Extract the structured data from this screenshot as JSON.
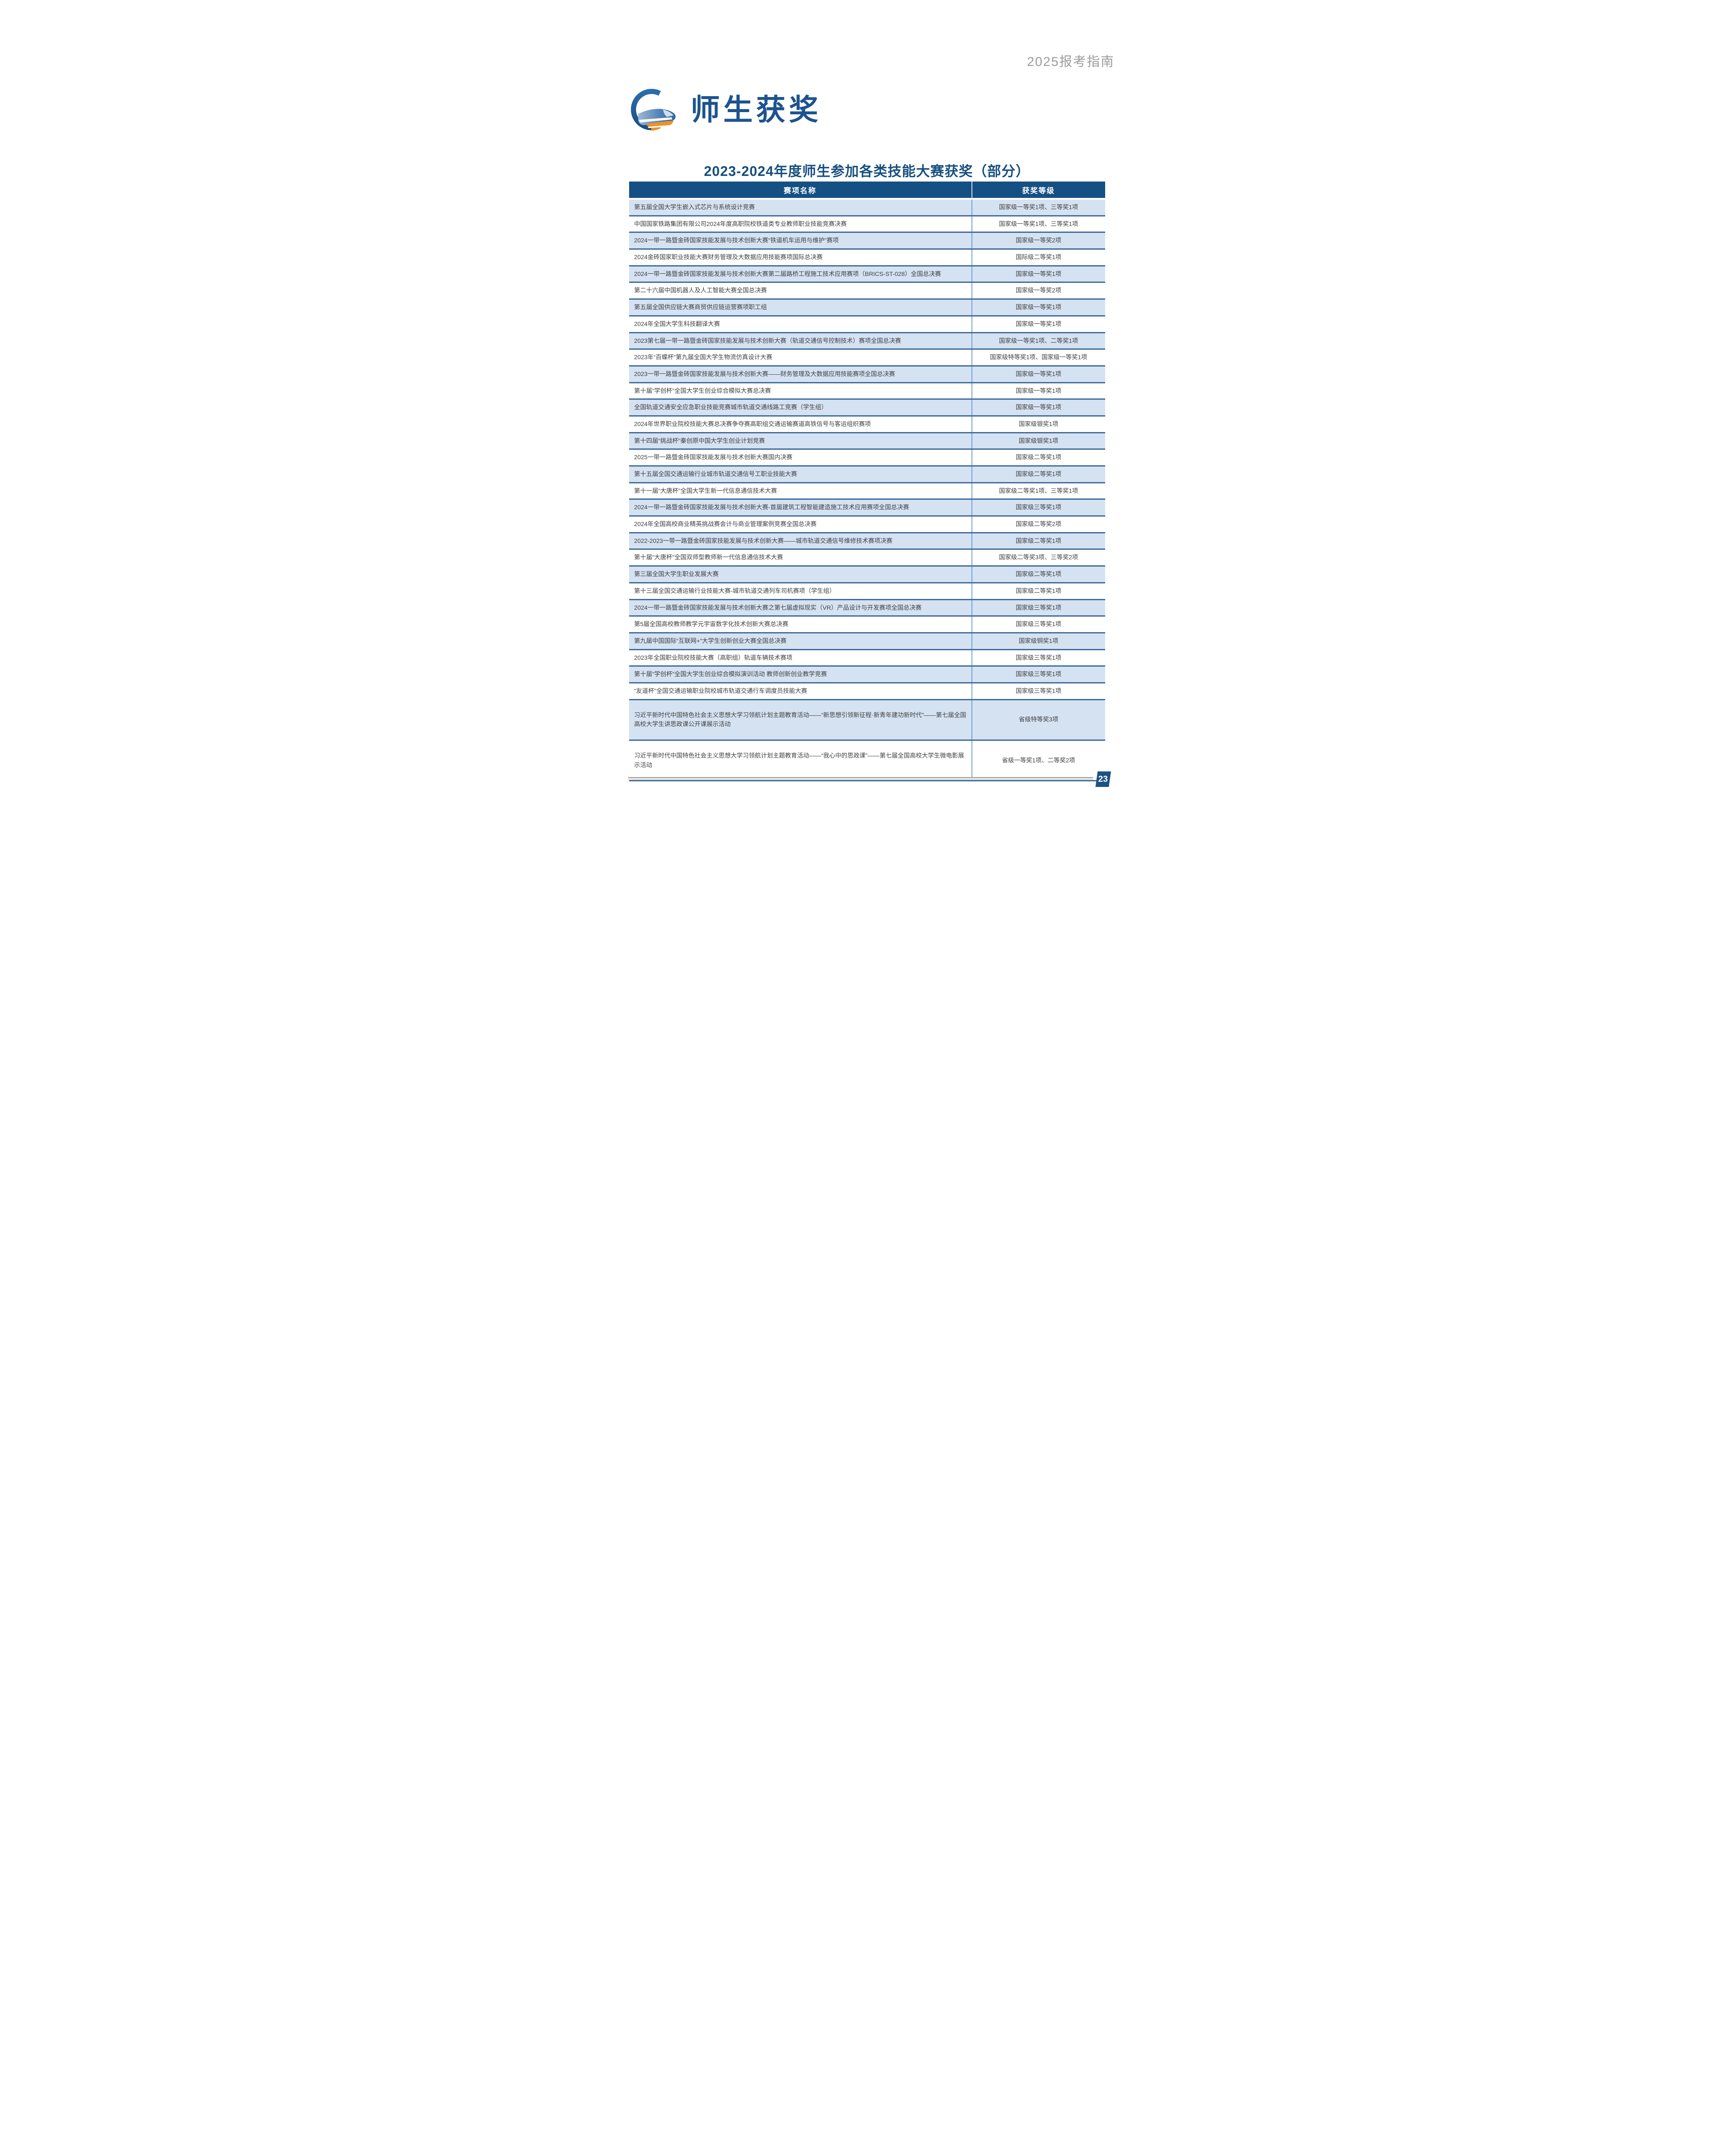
{
  "page": {
    "header_right": "2025报考指南",
    "page_number": "23"
  },
  "banner": {
    "title": "师生获奖",
    "logo": "high-speed-train-ring-logo"
  },
  "section": {
    "table_title": "2023-2024年度师生参加各类技能大赛获奖（部分）"
  },
  "table": {
    "columns": [
      "赛项名称",
      "获奖等级"
    ],
    "rows": [
      {
        "name": "第五届全国大学生嵌入式芯片与系统设计竞赛",
        "award": "国家级一等奖1项、三等奖1项"
      },
      {
        "name": "中国国家铁路集团有限公司2024年度高职院校铁道类专业教师职业技能竞赛决赛",
        "award": "国家级一等奖1项、三等奖1项"
      },
      {
        "name": "2024一带一路暨金砖国家技能发展与技术创新大赛“铁道机车运用与维护”赛项",
        "award": "国家级一等奖2项"
      },
      {
        "name": "2024金砖国家职业技能大赛财务管理及大数据应用技能赛项国际总决赛",
        "award": "国际级二等奖1项"
      },
      {
        "name": "2024一带一路暨金砖国家技能发展与技术创新大赛第二届路桥工程施工技术应用赛项（BRICS-ST-028）全国总决赛",
        "award": "国家级一等奖1项"
      },
      {
        "name": "第二十六届中国机器人及人工智能大赛全国总决赛",
        "award": "国家级一等奖2项"
      },
      {
        "name": "第五届全国供应链大赛商贸供应链运营赛项职工组",
        "award": "国家级一等奖1项"
      },
      {
        "name": "2024年全国大学生科技翻译大赛",
        "award": "国家级一等奖1项"
      },
      {
        "name": "2023第七届一带一路暨金砖国家技能发展与技术创新大赛（轨道交通信号控制技术）赛项全国总决赛",
        "award": "国家级一等奖1项、二等奖1项"
      },
      {
        "name": "2023年“百蝶杯”第九届全国大学生物流仿真设计大赛",
        "award": "国家级特等奖1项、国家级一等奖1项"
      },
      {
        "name": "2023一带一路暨金砖国家技能发展与技术创新大赛——财务管理及大数据应用技能赛项全国总决赛",
        "award": "国家级一等奖1项"
      },
      {
        "name": "第十届“学创杯”全国大学生创业综合模拟大赛总决赛",
        "award": "国家级一等奖1项"
      },
      {
        "name": "全国轨道交通安全应急职业技能竞赛城市轨道交通线路工竞赛（学生组）",
        "award": "国家级一等奖1项"
      },
      {
        "name": "2024年世界职业院校技能大赛总决赛争夺赛高职组交通运输赛道高铁信号与客运组织赛项",
        "award": "国家级银奖1项"
      },
      {
        "name": "第十四届“挑战杯”秦创原中国大学生创业计划竞赛",
        "award": "国家级银奖1项"
      },
      {
        "name": "2025一带一路暨金砖国家技能发展与技术创新大赛国内决赛",
        "award": "国家级二等奖1项"
      },
      {
        "name": "第十五届全国交通运输行业城市轨道交通信号工职业技能大赛",
        "award": "国家级二等奖1项"
      },
      {
        "name": "第十一届“大唐杯”全国大学生新一代信息通信技术大赛",
        "award": "国家级二等奖1项、三等奖1项"
      },
      {
        "name": "2024一带一路暨金砖国家技能发展与技术创新大赛-首届建筑工程智能建造施工技术应用赛项全国总决赛",
        "award": "国家级三等奖1项"
      },
      {
        "name": "2024年全国高校商业精英挑战赛会计与商业管理案例竞赛全国总决赛",
        "award": "国家级二等奖2项"
      },
      {
        "name": "2022-2023一带一路暨金砖国家技能发展与技术创新大赛——城市轨道交通信号维修技术赛项决赛",
        "award": "国家级二等奖1项"
      },
      {
        "name": "第十届“大唐杯”全国双师型教师新一代信息通信技术大赛",
        "award": "国家级二等奖3项、三等奖2项"
      },
      {
        "name": "第三届全国大学生职业发展大赛",
        "award": "国家级二等奖1项"
      },
      {
        "name": "第十三届全国交通运输行业技能大赛-城市轨道交通列车司机赛项（学生组）",
        "award": "国家级二等奖1项"
      },
      {
        "name": "2024一带一路暨金砖国家技能发展与技术创新大赛之第七届虚拟现实（VR）产品设计与开发赛项全国总决赛",
        "award": "国家级三等奖1项"
      },
      {
        "name": "第5届全国高校教师教学元宇宙数字化技术创新大赛总决赛",
        "award": "国家级三等奖1项"
      },
      {
        "name": "第九届中国国际“互联网+”大学生创新创业大赛全国总决赛",
        "award": "国家级铜奖1项"
      },
      {
        "name": "2023年全国职业院校技能大赛（高职组）轨道车辆技术赛项",
        "award": "国家级三等奖1项"
      },
      {
        "name": "第十届“学创杯”全国大学生创业综合模拟演训活动 教师创新创业教学竞赛",
        "award": "国家级三等奖1项"
      },
      {
        "name": "“友道杯”全国交通运输职业院校城市轨道交通行车调度员技能大赛",
        "award": "国家级三等奖1项"
      },
      {
        "name": "习近平新时代中国特色社会主义思想大学习领航计划主题教育活动——“新思想引领新征程·新青年建功新时代”——第七届全国高校大学生讲思政课公开课展示活动",
        "award": "省级特等奖3项"
      },
      {
        "name": "习近平新时代中国特色社会主义思想大学习领航计划主题教育活动——“我心中的思政课”——第七届全国高校大学生微电影展示活动",
        "award": "省级一等奖1项、二等奖2项"
      }
    ]
  },
  "colors": {
    "header_bg": "#155084",
    "title_blue": "#164e7e",
    "banner_blue": "#1d538e",
    "row_alt_bg": "#d5e2f2",
    "row_separator": "#3c6b99",
    "column_divider": "#6f9fd0",
    "body_text": "#3f3f3f",
    "header_gray_text": "#9c9c9c",
    "footer_line": "#ababab",
    "badge_bg": "#1d5282",
    "logo_blue": "#2b6cab",
    "logo_orange": "#ec9227"
  }
}
